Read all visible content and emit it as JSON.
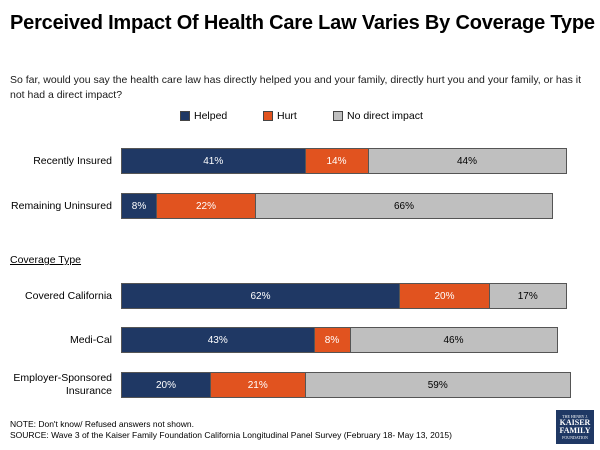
{
  "title": "Perceived Impact Of Health Care Law Varies By Coverage Type",
  "question": "So far, would you say the health care law has directly helped you and your family, directly hurt you and your family, or has it not had a direct impact?",
  "legend": [
    {
      "label": "Helped",
      "color": "#1f3864"
    },
    {
      "label": "Hurt",
      "color": "#e1531f"
    },
    {
      "label": "No direct impact",
      "color": "#bfbfbf"
    }
  ],
  "section_label": "Coverage Type",
  "chart_data": {
    "type": "bar",
    "orientation": "horizontal",
    "stacked": true,
    "title": "Perceived Impact Of Health Care Law Varies By Coverage Type",
    "categories": [
      "Recently Insured",
      "Remaining Uninsured",
      "Covered California",
      "Medi-Cal",
      "Employer-Sponsored Insurance"
    ],
    "groups": [
      {
        "label": "",
        "categories": [
          "Recently Insured",
          "Remaining Uninsured"
        ]
      },
      {
        "label": "Coverage Type",
        "categories": [
          "Covered California",
          "Medi-Cal",
          "Employer-Sponsored Insurance"
        ]
      }
    ],
    "series": [
      {
        "name": "Helped",
        "color": "#1f3864",
        "values": [
          41,
          8,
          62,
          43,
          20
        ]
      },
      {
        "name": "Hurt",
        "color": "#e1531f",
        "values": [
          14,
          22,
          20,
          8,
          21
        ]
      },
      {
        "name": "No direct impact",
        "color": "#bfbfbf",
        "values": [
          44,
          66,
          17,
          46,
          59
        ]
      }
    ],
    "value_suffix": "%",
    "xlim": [
      0,
      100
    ],
    "xlabel": "",
    "ylabel": ""
  },
  "footer": {
    "note": "NOTE: Don't know/ Refused answers not shown.",
    "source": "SOURCE: Wave 3 of the Kaiser Family Foundation California Longitudinal Panel Survey (February 18- May 13, 2015)"
  },
  "logo": {
    "line1": "THE HENRY J.",
    "line2": "KAISER",
    "line3": "FAMILY",
    "line4": "FOUNDATION"
  }
}
